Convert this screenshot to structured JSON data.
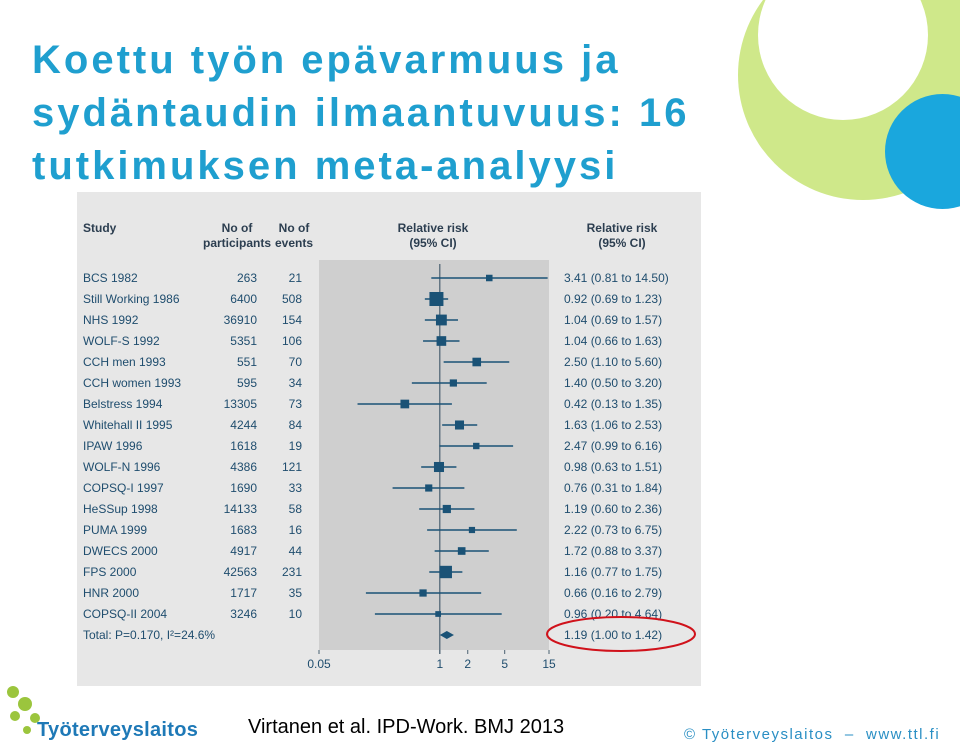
{
  "slide": {
    "title": "Koettu työn epävarmuus ja sydäntaudin ilmaantuvuus: 16 tutkimuksen meta-analyysi",
    "citation": "Virtanen et al. IPD-Work. BMJ 2013",
    "footer": "© Työterveyslaitos  –  www.ttl.fi",
    "logo_text": "Työterveyslaitos",
    "colors": {
      "title": "#1f9fcf",
      "lime_circle": "#cfe88a",
      "cyan_circle": "#1aa7dd",
      "marker": "#1a5276",
      "highlight_circle": "#d0121b",
      "logo_green": "#9bc53d",
      "logo_blue": "#1e79b7"
    }
  },
  "chart_data": {
    "type": "forest",
    "headers": {
      "study": "Study",
      "participants": [
        "No of",
        "participants"
      ],
      "events": [
        "No of",
        "events"
      ],
      "rr_plot": [
        "Relative risk",
        "(95% CI)"
      ],
      "rr_text": [
        "Relative risk",
        "(95% CI)"
      ]
    },
    "x_scale": "log",
    "xlim": [
      0.05,
      15
    ],
    "x_ticks": [
      0.05,
      1,
      2,
      5,
      15
    ],
    "x_tick_labels": [
      "0.05",
      "1",
      "2",
      "5",
      "15"
    ],
    "reference_line": 1,
    "studies": [
      {
        "name": "BCS 1982",
        "participants": "263",
        "events": "21",
        "rr": 3.41,
        "lo": 0.81,
        "hi": 14.5,
        "rr_label": "3.41 (0.81 to 14.50)"
      },
      {
        "name": "Still Working 1986",
        "participants": "6400",
        "events": "508",
        "rr": 0.92,
        "lo": 0.69,
        "hi": 1.23,
        "rr_label": "0.92 (0.69 to 1.23)"
      },
      {
        "name": "NHS 1992",
        "participants": "36910",
        "events": "154",
        "rr": 1.04,
        "lo": 0.69,
        "hi": 1.57,
        "rr_label": "1.04 (0.69 to 1.57)"
      },
      {
        "name": "WOLF-S 1992",
        "participants": "5351",
        "events": "106",
        "rr": 1.04,
        "lo": 0.66,
        "hi": 1.63,
        "rr_label": "1.04 (0.66 to 1.63)"
      },
      {
        "name": "CCH men 1993",
        "participants": "551",
        "events": "70",
        "rr": 2.5,
        "lo": 1.1,
        "hi": 5.6,
        "rr_label": "2.50 (1.10 to 5.60)"
      },
      {
        "name": "CCH women 1993",
        "participants": "595",
        "events": "34",
        "rr": 1.4,
        "lo": 0.5,
        "hi": 3.2,
        "rr_label": "1.40 (0.50 to 3.20)"
      },
      {
        "name": "Belstress 1994",
        "participants": "13305",
        "events": "73",
        "rr": 0.42,
        "lo": 0.13,
        "hi": 1.35,
        "rr_label": "0.42 (0.13 to 1.35)"
      },
      {
        "name": "Whitehall II 1995",
        "participants": "4244",
        "events": "84",
        "rr": 1.63,
        "lo": 1.06,
        "hi": 2.53,
        "rr_label": "1.63 (1.06 to 2.53)"
      },
      {
        "name": "IPAW 1996",
        "participants": "1618",
        "events": "19",
        "rr": 2.47,
        "lo": 0.99,
        "hi": 6.16,
        "rr_label": "2.47 (0.99 to 6.16)"
      },
      {
        "name": "WOLF-N 1996",
        "participants": "4386",
        "events": "121",
        "rr": 0.98,
        "lo": 0.63,
        "hi": 1.51,
        "rr_label": "0.98 (0.63 to 1.51)"
      },
      {
        "name": "COPSQ-I 1997",
        "participants": "1690",
        "events": "33",
        "rr": 0.76,
        "lo": 0.31,
        "hi": 1.84,
        "rr_label": "0.76 (0.31 to 1.84)"
      },
      {
        "name": "HeSSup 1998",
        "participants": "14133",
        "events": "58",
        "rr": 1.19,
        "lo": 0.6,
        "hi": 2.36,
        "rr_label": "1.19 (0.60 to 2.36)"
      },
      {
        "name": "PUMA 1999",
        "participants": "1683",
        "events": "16",
        "rr": 2.22,
        "lo": 0.73,
        "hi": 6.75,
        "rr_label": "2.22 (0.73 to 6.75)"
      },
      {
        "name": "DWECS 2000",
        "participants": "4917",
        "events": "44",
        "rr": 1.72,
        "lo": 0.88,
        "hi": 3.37,
        "rr_label": "1.72 (0.88 to 3.37)"
      },
      {
        "name": "FPS 2000",
        "participants": "42563",
        "events": "231",
        "rr": 1.16,
        "lo": 0.77,
        "hi": 1.75,
        "rr_label": "1.16 (0.77 to 1.75)"
      },
      {
        "name": "HNR 2000",
        "participants": "1717",
        "events": "35",
        "rr": 0.66,
        "lo": 0.16,
        "hi": 2.79,
        "rr_label": "0.66 (0.16 to 2.79)"
      },
      {
        "name": "COPSQ-II 2004",
        "participants": "3246",
        "events": "10",
        "rr": 0.96,
        "lo": 0.2,
        "hi": 4.64,
        "rr_label": "0.96 (0.20 to 4.64)"
      }
    ],
    "total": {
      "label": "Total: P=0.170, I²=24.6%",
      "rr": 1.19,
      "lo": 1.0,
      "hi": 1.42,
      "rr_label": "1.19 (1.00 to 1.42)",
      "highlighted": true
    }
  }
}
